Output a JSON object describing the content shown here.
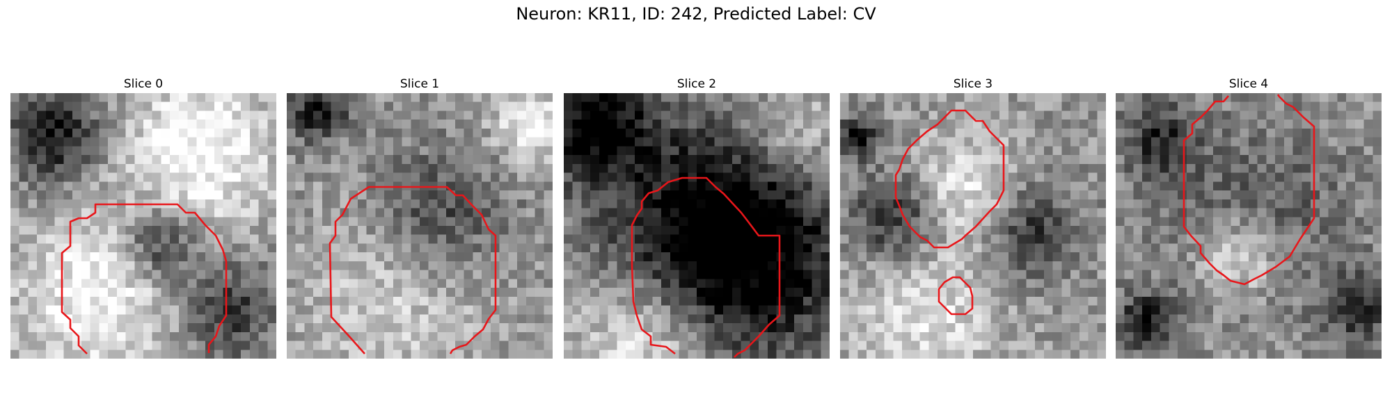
{
  "figure": {
    "suptitle": "Neuron: KR11, ID: 242, Predicted Label: CV"
  },
  "contour_color": "#e8161a",
  "panels": [
    {
      "title": "Slice 0"
    },
    {
      "title": "Slice 1"
    },
    {
      "title": "Slice 2"
    },
    {
      "title": "Slice 3"
    },
    {
      "title": "Slice 4"
    }
  ]
}
